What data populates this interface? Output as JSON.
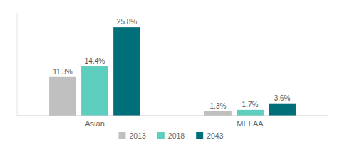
{
  "chart_data": {
    "type": "bar",
    "categories": [
      "Asian",
      "MELAA"
    ],
    "series": [
      {
        "name": "2013",
        "color": "#c0c0c0",
        "values": [
          11.3,
          1.3
        ],
        "value_labels": [
          "11.3%",
          "1.3%"
        ]
      },
      {
        "name": "2018",
        "color": "#5ecfbe",
        "values": [
          14.4,
          1.7
        ],
        "value_labels": [
          "14.4%",
          "1.7%"
        ]
      },
      {
        "name": "2043",
        "color": "#006f7a",
        "values": [
          25.8,
          3.6
        ],
        "value_labels": [
          "25.8%",
          "3.6%"
        ]
      }
    ],
    "ylim": [
      0,
      30
    ],
    "data_labels": true,
    "tick_labels": "x",
    "grid": false,
    "legend": "bottom"
  }
}
